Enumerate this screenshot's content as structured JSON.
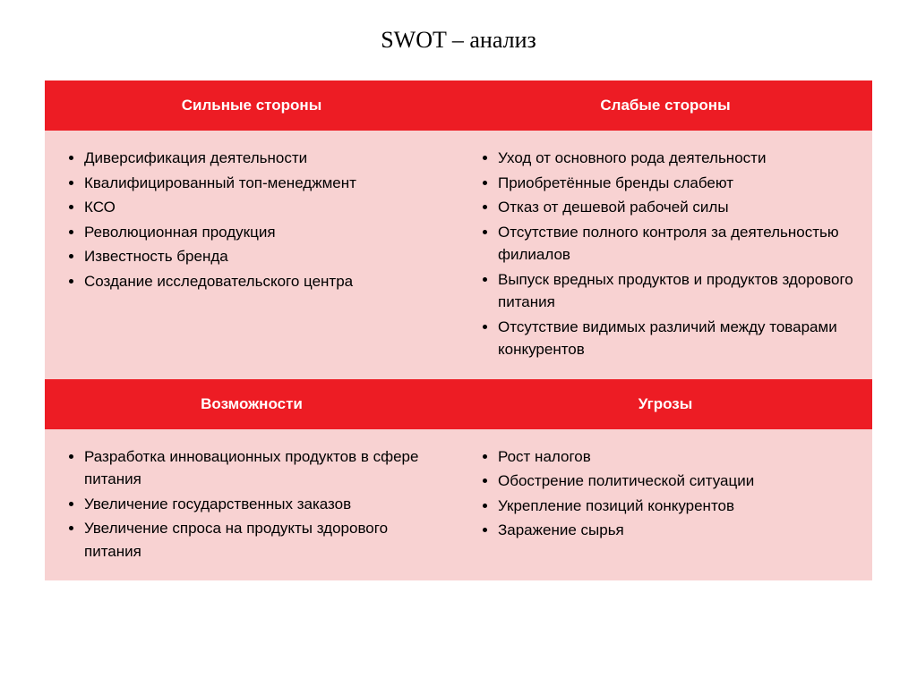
{
  "title": "SWOT – анализ",
  "colors": {
    "header_bg": "#ed1c24",
    "header_text": "#ffffff",
    "content_bg": "#f8d2d2",
    "content_text": "#000000",
    "page_bg": "#ffffff"
  },
  "quadrants": {
    "strengths": {
      "header": "Сильные стороны",
      "items": [
        "Диверсификация деятельности",
        "Квалифицированный топ-менеджмент",
        "КСО",
        "Революционная продукция",
        "Известность бренда",
        "Создание исследовательского центра"
      ]
    },
    "weaknesses": {
      "header": "Слабые стороны",
      "items": [
        "Уход от основного рода деятельности",
        "Приобретённые бренды слабеют",
        "Отказ от дешевой рабочей силы",
        "Отсутствие полного контроля за деятельностью филиалов",
        "Выпуск вредных продуктов и продуктов здорового питания",
        "Отсутствие видимых различий между товарами конкурентов"
      ]
    },
    "opportunities": {
      "header": "Возможности",
      "items": [
        "Разработка инновационных продуктов в сфере питания",
        "Увеличение государственных заказов",
        "Увеличение спроса на продукты здорового питания"
      ]
    },
    "threats": {
      "header": "Угрозы",
      "items": [
        "Рост налогов",
        "Обострение политической ситуации",
        "Укрепление позиций конкурентов",
        "Заражение сырья"
      ]
    }
  }
}
